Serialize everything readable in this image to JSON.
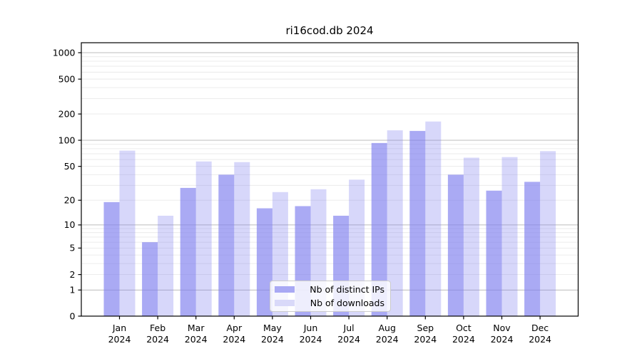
{
  "chart_data": {
    "type": "bar",
    "title": "ri16cod.db 2024",
    "x_year_label": "2024",
    "categories": [
      "Jan",
      "Feb",
      "Mar",
      "Apr",
      "May",
      "Jun",
      "Jul",
      "Aug",
      "Sep",
      "Oct",
      "Nov",
      "Dec"
    ],
    "series": [
      {
        "name": "Nb of distinct IPs",
        "color": "#a9a9f4",
        "bar_fill": "rgba(124,124,238,0.65)",
        "values": [
          19,
          6,
          28,
          40,
          16,
          17,
          13,
          93,
          128,
          40,
          26,
          33
        ]
      },
      {
        "name": "Nb of downloads",
        "color": "#d9d9f9",
        "bar_fill": "rgba(124,124,238,0.30)",
        "values": [
          76,
          13,
          57,
          56,
          25,
          27,
          35,
          130,
          164,
          63,
          64,
          75
        ]
      }
    ],
    "y_scale": "log10(value+1)",
    "y_ticks": [
      0,
      1,
      2,
      5,
      10,
      20,
      50,
      100,
      200,
      500,
      1000
    ],
    "ylim": [
      0,
      1296
    ],
    "grid": true,
    "legend_position": "lower-center",
    "style": {
      "grid_major_color": "#bcbcbc",
      "grid_minor_color": "#e9e9e9",
      "spine_color": "#000000",
      "tick_label_color": "#000000"
    }
  }
}
